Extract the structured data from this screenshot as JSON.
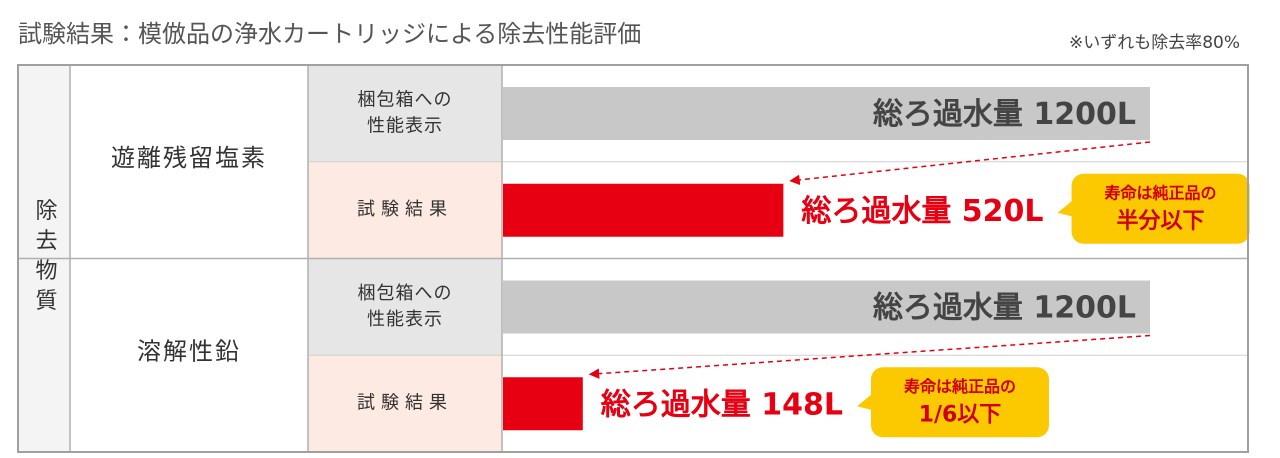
{
  "chart_data": {
    "type": "bar",
    "title": "試験結果：模倣品の浄水カートリッジによる除去性能評価",
    "note": "※いずれも除去率80%",
    "group_label": "除去物質",
    "groups": [
      {
        "name": "遊離残留塩素",
        "rows": [
          {
            "label": [
              "梱包箱への",
              "性能表示"
            ],
            "value": 1200,
            "value_label": "総ろ過水量 1200L",
            "color": "#c8c8c8"
          },
          {
            "label": [
              "試験結果"
            ],
            "value": 520,
            "value_label": "総ろ過水量 520L",
            "color": "#e60012",
            "callout": [
              "寿命は純正品の",
              "半分以下"
            ]
          }
        ]
      },
      {
        "name": "溶解性鉛",
        "rows": [
          {
            "label": [
              "梱包箱への",
              "性能表示"
            ],
            "value": 1200,
            "value_label": "総ろ過水量 1200L",
            "color": "#c8c8c8"
          },
          {
            "label": [
              "試験結果"
            ],
            "value": 148,
            "value_label": "総ろ過水量 148L",
            "color": "#e60012",
            "callout": [
              "寿命は純正品の",
              "1/6以下"
            ]
          }
        ]
      }
    ]
  }
}
